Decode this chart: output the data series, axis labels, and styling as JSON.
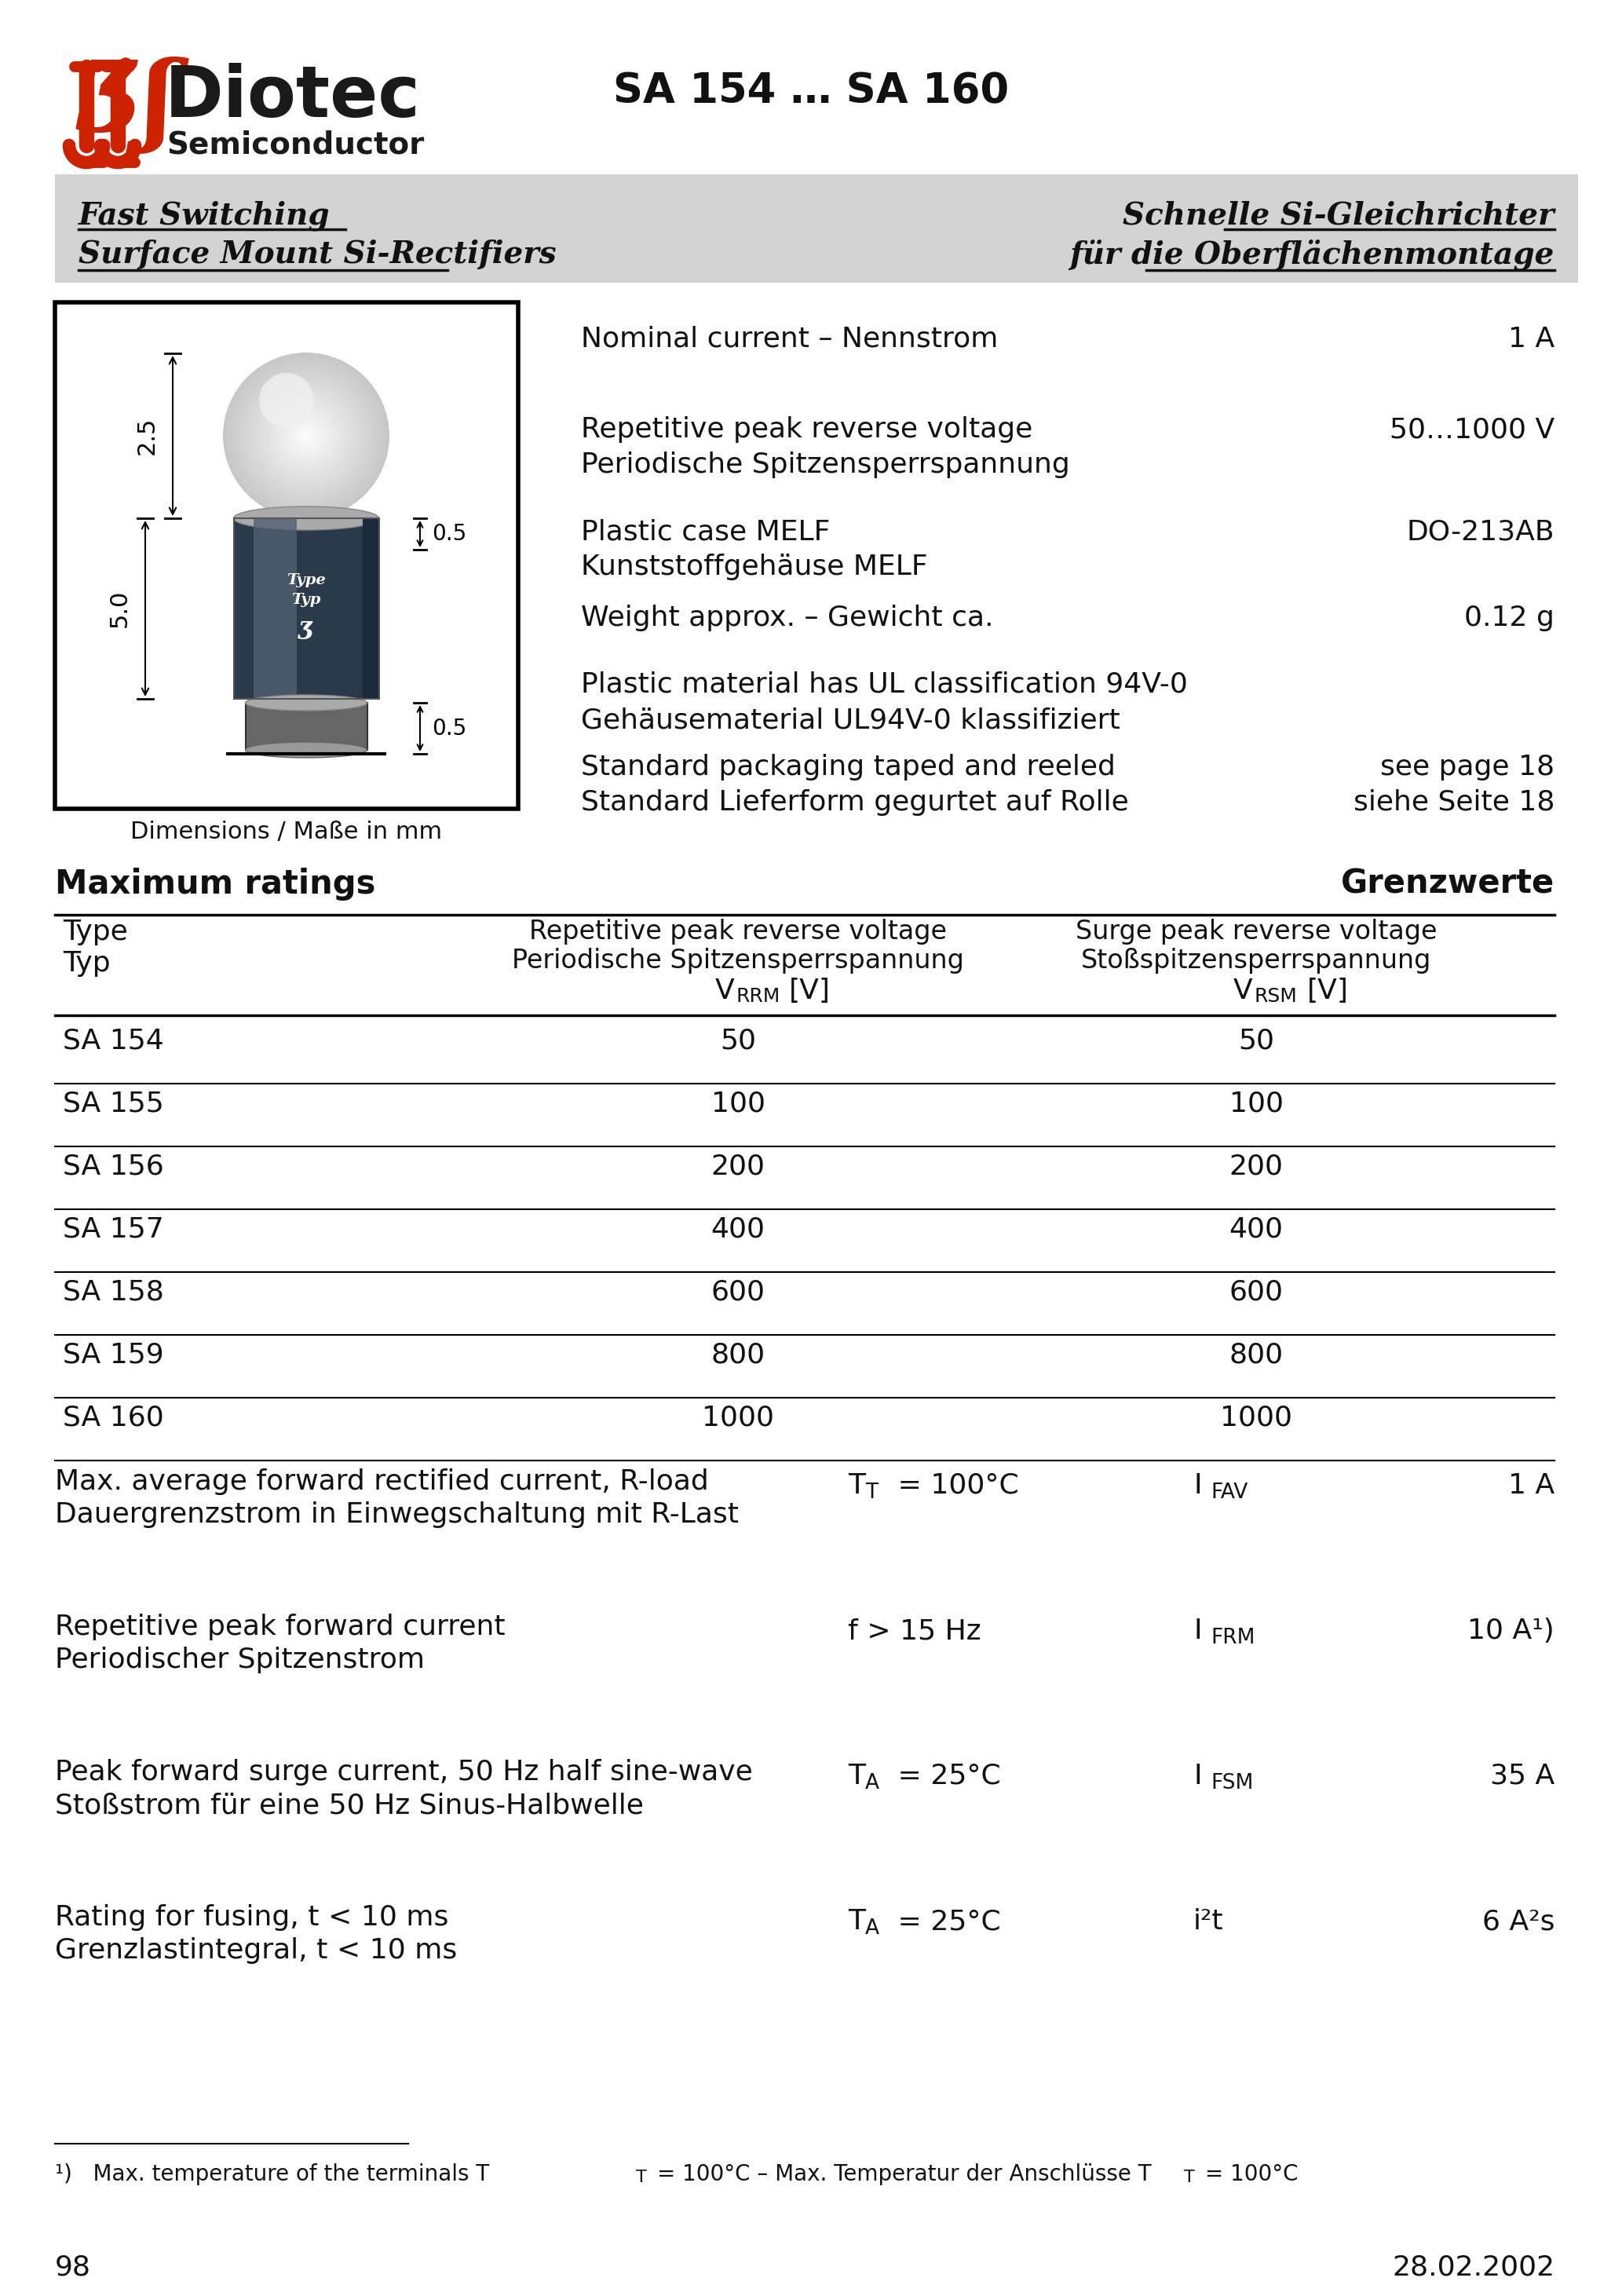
{
  "page_title": "SA 154 … SA 160",
  "company_name": "Diotec",
  "company_sub": "Semiconductor",
  "header_left_line1": "Fast Switching",
  "header_left_line2": "Surface Mount Si-Rectifiers",
  "header_right_line1": "Schnelle Si-Gleichrichter",
  "header_right_line2": "für die Oberflächenmontage",
  "specs": [
    {
      "label": "Nominal current – Nennstrom",
      "label2": "",
      "value": "1 A",
      "value2": ""
    },
    {
      "label": "Repetitive peak reverse voltage",
      "label2": "Periodische Spitzensperrspannung",
      "value": "50…1000 V",
      "value2": ""
    },
    {
      "label": "Plastic case MELF",
      "label2": "Kunststoffgehäuse MELF",
      "value": "DO-213AB",
      "value2": ""
    },
    {
      "label": "Weight approx. – Gewicht ca.",
      "label2": "",
      "value": "0.12 g",
      "value2": ""
    },
    {
      "label": "Plastic material has UL classification 94V-0",
      "label2": "Gehäusematerial UL94V-0 klassifiziert",
      "value": "",
      "value2": ""
    },
    {
      "label": "Standard packaging taped and reeled",
      "label2": "Standard Lieferform gegurtet auf Rolle",
      "value": "see page 18",
      "value2": "siehe Seite 18"
    }
  ],
  "dim_caption": "Dimensions / Maße in mm",
  "table_title_left": "Maximum ratings",
  "table_title_right": "Grenzwerte",
  "table_rows": [
    [
      "SA 154",
      "50",
      "50"
    ],
    [
      "SA 155",
      "100",
      "100"
    ],
    [
      "SA 156",
      "200",
      "200"
    ],
    [
      "SA 157",
      "400",
      "400"
    ],
    [
      "SA 158",
      "600",
      "600"
    ],
    [
      "SA 159",
      "800",
      "800"
    ],
    [
      "SA 160",
      "1000",
      "1000"
    ]
  ],
  "electrical_params": [
    {
      "label1": "Max. average forward rectified current, R-load",
      "label2": "Dauergrenzstrom in Einwegschaltung mit R-Last",
      "cond_main": "T",
      "cond_sub": "T",
      "cond_val": " = 100°C",
      "sym_main": "I",
      "sym_sub": "FAV",
      "value": "1 A"
    },
    {
      "label1": "Repetitive peak forward current",
      "label2": "Periodischer Spitzenstrom",
      "cond_main": "f > 15 Hz",
      "cond_sub": "",
      "cond_val": "",
      "sym_main": "I",
      "sym_sub": "FRM",
      "value": "10 A¹)"
    },
    {
      "label1": "Peak forward surge current, 50 Hz half sine-wave",
      "label2": "Stoßstrom für eine 50 Hz Sinus-Halbwelle",
      "cond_main": "T",
      "cond_sub": "A",
      "cond_val": " = 25°C",
      "sym_main": "I",
      "sym_sub": "FSM",
      "value": "35 A"
    },
    {
      "label1": "Rating for fusing, t < 10 ms",
      "label2": "Grenzlastintegral, t < 10 ms",
      "cond_main": "T",
      "cond_sub": "A",
      "cond_val": " = 25°C",
      "sym_main": "i²t",
      "sym_sub": "",
      "value": "6 A²s"
    }
  ],
  "footnote_num": "¹)",
  "footnote_text": "   Max. temperature of the terminals T",
  "footnote_sub1": "T",
  "footnote_mid": " = 100°C – Max. Temperatur der Anschlüsse T",
  "footnote_sub2": "T",
  "footnote_end": " = 100°C",
  "page_num": "98",
  "date": "28.02.2002",
  "bg_color": "#ffffff",
  "header_bg": "#d3d3d3",
  "logo_red": "#cc2200"
}
